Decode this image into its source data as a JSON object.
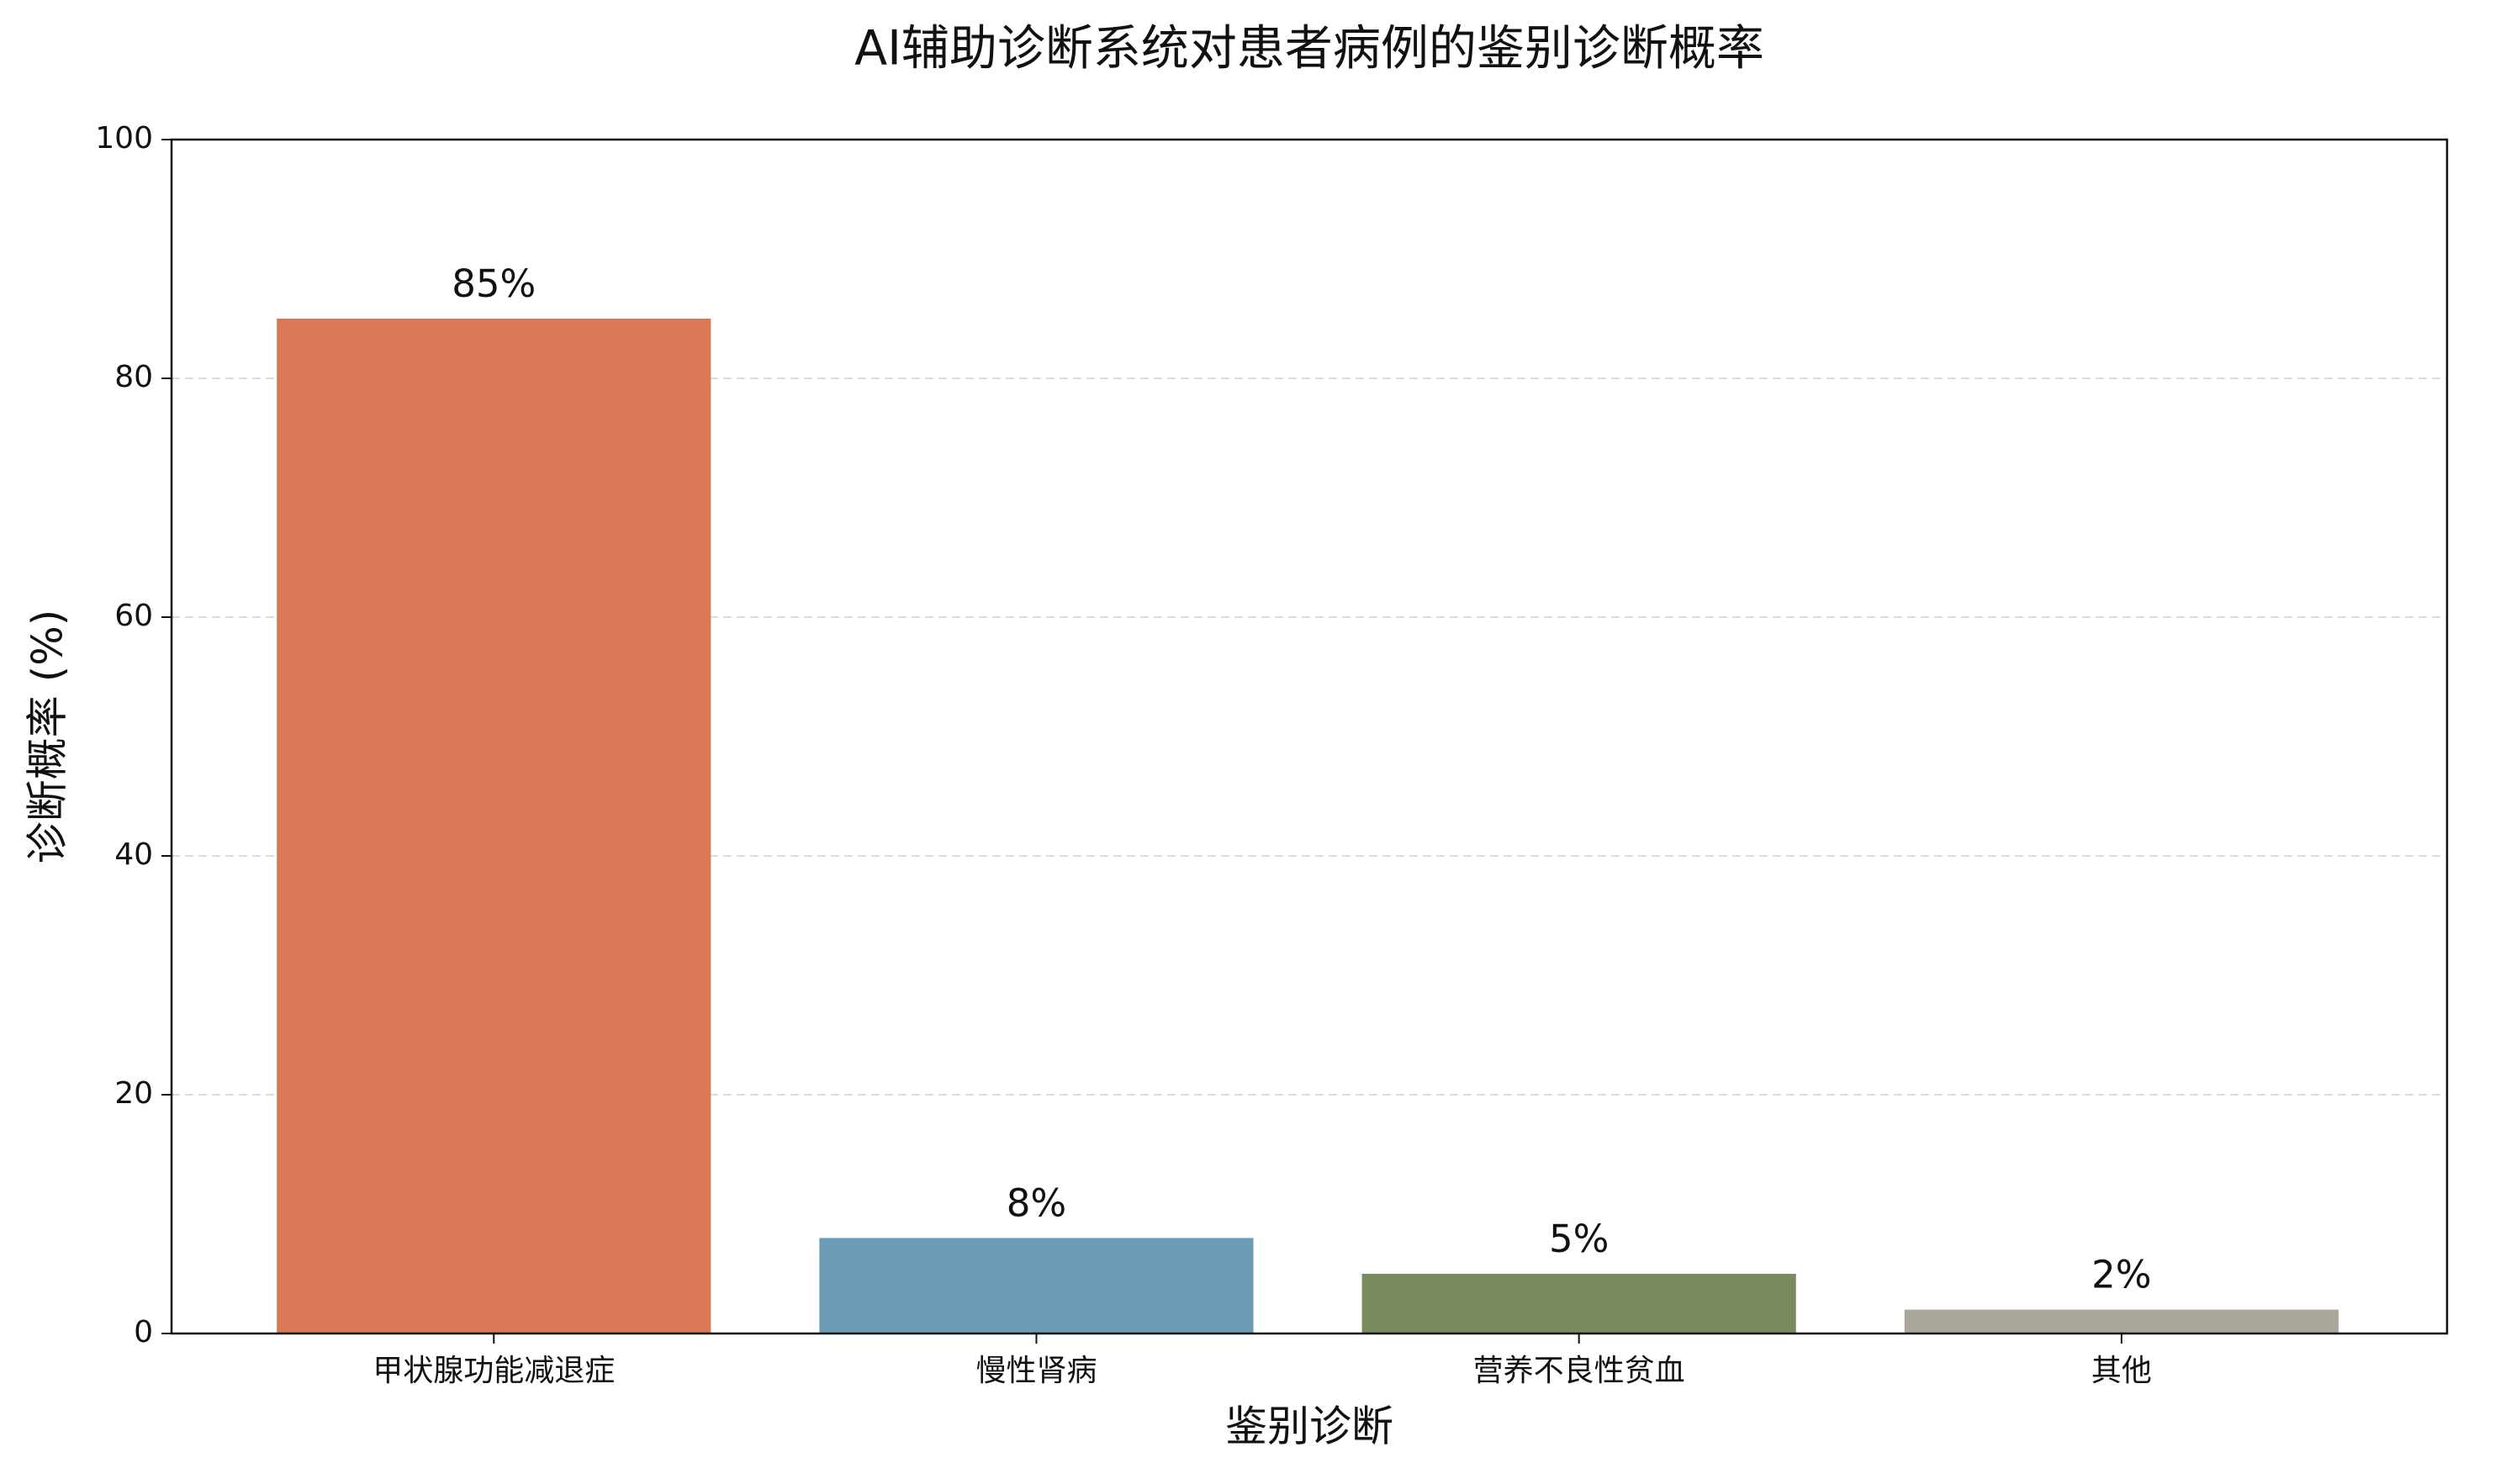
{
  "chart_data": {
    "type": "bar",
    "title": "AI辅助诊断系统对患者病例的鉴别诊断概率",
    "x_label": "鉴别诊断",
    "y_label": "诊断概率 (%)",
    "categories": [
      "甲状腺功能减退症",
      "慢性肾病",
      "营养不良性贫血",
      "其他"
    ],
    "values": [
      85,
      8,
      5,
      2
    ],
    "value_labels": [
      "85%",
      "8%",
      "5%",
      "2%"
    ],
    "colors": [
      "#d97757",
      "#6a9db5",
      "#7a8b5e",
      "#aba89b"
    ],
    "ylim": [
      0,
      100
    ],
    "yticks": [
      0,
      20,
      40,
      60,
      80,
      100
    ],
    "grid": true
  }
}
